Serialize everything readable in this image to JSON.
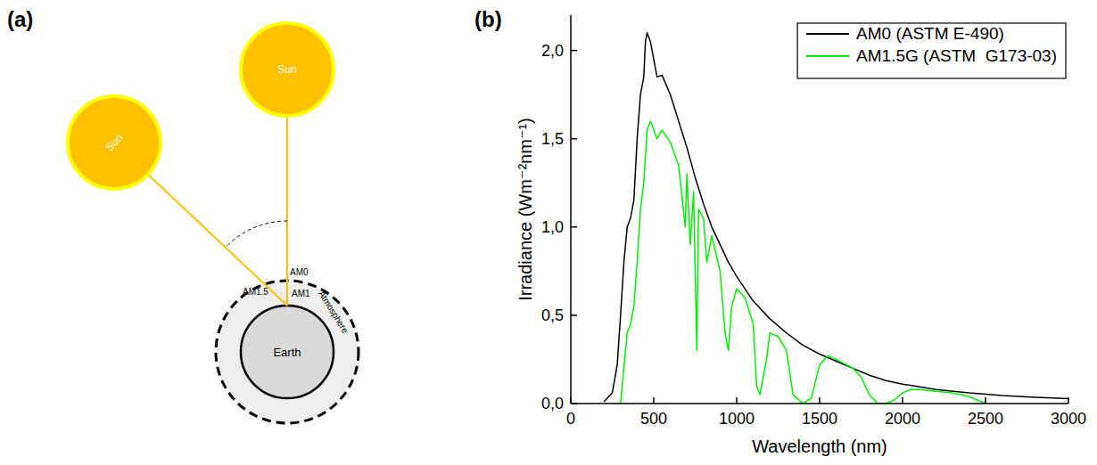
{
  "panels": [
    "(a)",
    "(b)"
  ],
  "diagram": {
    "suns": [
      "Sun",
      "Sun"
    ],
    "earth": "Earth",
    "atmosphere": "Atmosphere",
    "air_mass_labels": [
      "AM0",
      "AM1.5",
      "AM1"
    ]
  },
  "chart_data": {
    "type": "line",
    "x_label": "Wavelength (nm)",
    "y_label": "Irradiance (Wm⁻²nm⁻¹)",
    "xlim": [
      0,
      3000
    ],
    "xticks": [
      0,
      500,
      1000,
      1500,
      2000,
      2500,
      3000
    ],
    "ylim": [
      0,
      2.2
    ],
    "yticks": [
      {
        "value": 0,
        "label": "0,0"
      },
      {
        "value": 0.5,
        "label": "0,5"
      },
      {
        "value": 1,
        "label": "1,0"
      },
      {
        "value": 1.5,
        "label": "1,5"
      },
      {
        "value": 2,
        "label": "2,0"
      }
    ],
    "grid": false,
    "legend": "upper right",
    "series": [
      {
        "name": "AM0 (ASTM E-490)",
        "color": "#000000",
        "x": [
          200,
          250,
          280,
          300,
          320,
          340,
          360,
          380,
          400,
          420,
          440,
          450,
          460,
          480,
          500,
          520,
          550,
          600,
          650,
          700,
          750,
          800,
          850,
          900,
          950,
          1000,
          1100,
          1200,
          1300,
          1400,
          1500,
          1600,
          1700,
          1800,
          1900,
          2000,
          2200,
          2400,
          2600,
          2800,
          3000
        ],
        "values": [
          0.01,
          0.06,
          0.22,
          0.5,
          0.8,
          1.0,
          1.05,
          1.15,
          1.5,
          1.75,
          1.85,
          2.05,
          2.1,
          2.05,
          1.95,
          1.85,
          1.86,
          1.75,
          1.6,
          1.45,
          1.28,
          1.13,
          1.0,
          0.9,
          0.8,
          0.72,
          0.58,
          0.48,
          0.4,
          0.33,
          0.28,
          0.24,
          0.2,
          0.16,
          0.13,
          0.11,
          0.08,
          0.06,
          0.045,
          0.035,
          0.028
        ]
      },
      {
        "name": "AM1.5G (ASTM  G173-03)",
        "color": "#00ee00",
        "x": [
          280,
          300,
          320,
          340,
          360,
          380,
          400,
          420,
          440,
          460,
          480,
          500,
          520,
          550,
          600,
          650,
          690,
          700,
          720,
          740,
          760,
          770,
          800,
          820,
          850,
          900,
          930,
          950,
          970,
          1000,
          1050,
          1100,
          1120,
          1140,
          1180,
          1200,
          1250,
          1300,
          1340,
          1400,
          1450,
          1500,
          1550,
          1600,
          1700,
          1750,
          1800,
          1850,
          1900,
          1950,
          2000,
          2050,
          2100,
          2200,
          2300,
          2400,
          2450,
          2500
        ],
        "values": [
          0,
          0,
          0.2,
          0.4,
          0.45,
          0.55,
          0.8,
          1.1,
          1.25,
          1.55,
          1.6,
          1.55,
          1.5,
          1.55,
          1.48,
          1.35,
          1.0,
          1.3,
          0.9,
          1.2,
          0.3,
          1.1,
          1.05,
          0.8,
          0.95,
          0.75,
          0.4,
          0.3,
          0.55,
          0.65,
          0.6,
          0.45,
          0.1,
          0.05,
          0.25,
          0.4,
          0.38,
          0.3,
          0.05,
          0,
          0.03,
          0.22,
          0.27,
          0.25,
          0.2,
          0.15,
          0.05,
          0,
          0,
          0.02,
          0.06,
          0.08,
          0.08,
          0.07,
          0.06,
          0.04,
          0.02,
          0
        ]
      }
    ]
  }
}
